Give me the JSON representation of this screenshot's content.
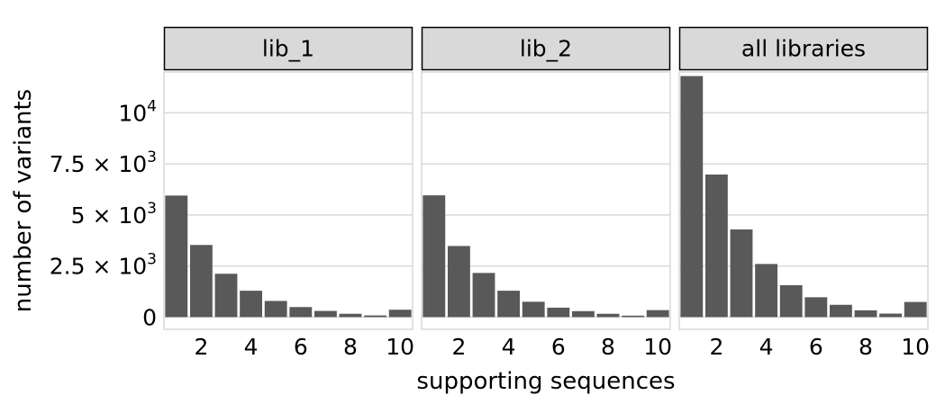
{
  "chart_data": {
    "type": "bar",
    "facet_by": "library",
    "xlabel": "supporting sequences",
    "ylabel": "number of variants",
    "x_ticks": [
      2,
      4,
      6,
      8,
      10
    ],
    "x_range": [
      0.5,
      10.5
    ],
    "ylim": [
      -600,
      12000
    ],
    "y_ticks": [
      {
        "value": 0,
        "mantissa": "0",
        "exponent": ""
      },
      {
        "value": 2500,
        "mantissa": "2.5 × 10",
        "exponent": "3"
      },
      {
        "value": 5000,
        "mantissa": "5 × 10",
        "exponent": "3"
      },
      {
        "value": 7500,
        "mantissa": "7.5 × 10",
        "exponent": "3"
      },
      {
        "value": 10000,
        "mantissa": "10",
        "exponent": "4"
      }
    ],
    "grid": true,
    "bar_color": "#595959",
    "strip_fill": "#d9d9d9",
    "grid_color": "#d9d9d9",
    "panels": [
      {
        "label": "lib_1",
        "x": [
          1,
          2,
          3,
          4,
          5,
          6,
          7,
          8,
          9,
          10
        ],
        "values": [
          5950,
          3530,
          2120,
          1290,
          790,
          490,
          300,
          160,
          80,
          360
        ]
      },
      {
        "label": "lib_2",
        "x": [
          1,
          2,
          3,
          4,
          5,
          6,
          7,
          8,
          9,
          10
        ],
        "values": [
          5960,
          3480,
          2160,
          1290,
          750,
          460,
          290,
          160,
          70,
          340
        ]
      },
      {
        "label": "all libraries",
        "x": [
          1,
          2,
          3,
          4,
          5,
          6,
          7,
          8,
          9,
          10
        ],
        "values": [
          11800,
          6980,
          4290,
          2600,
          1560,
          970,
          600,
          330,
          170,
          740
        ]
      }
    ]
  }
}
